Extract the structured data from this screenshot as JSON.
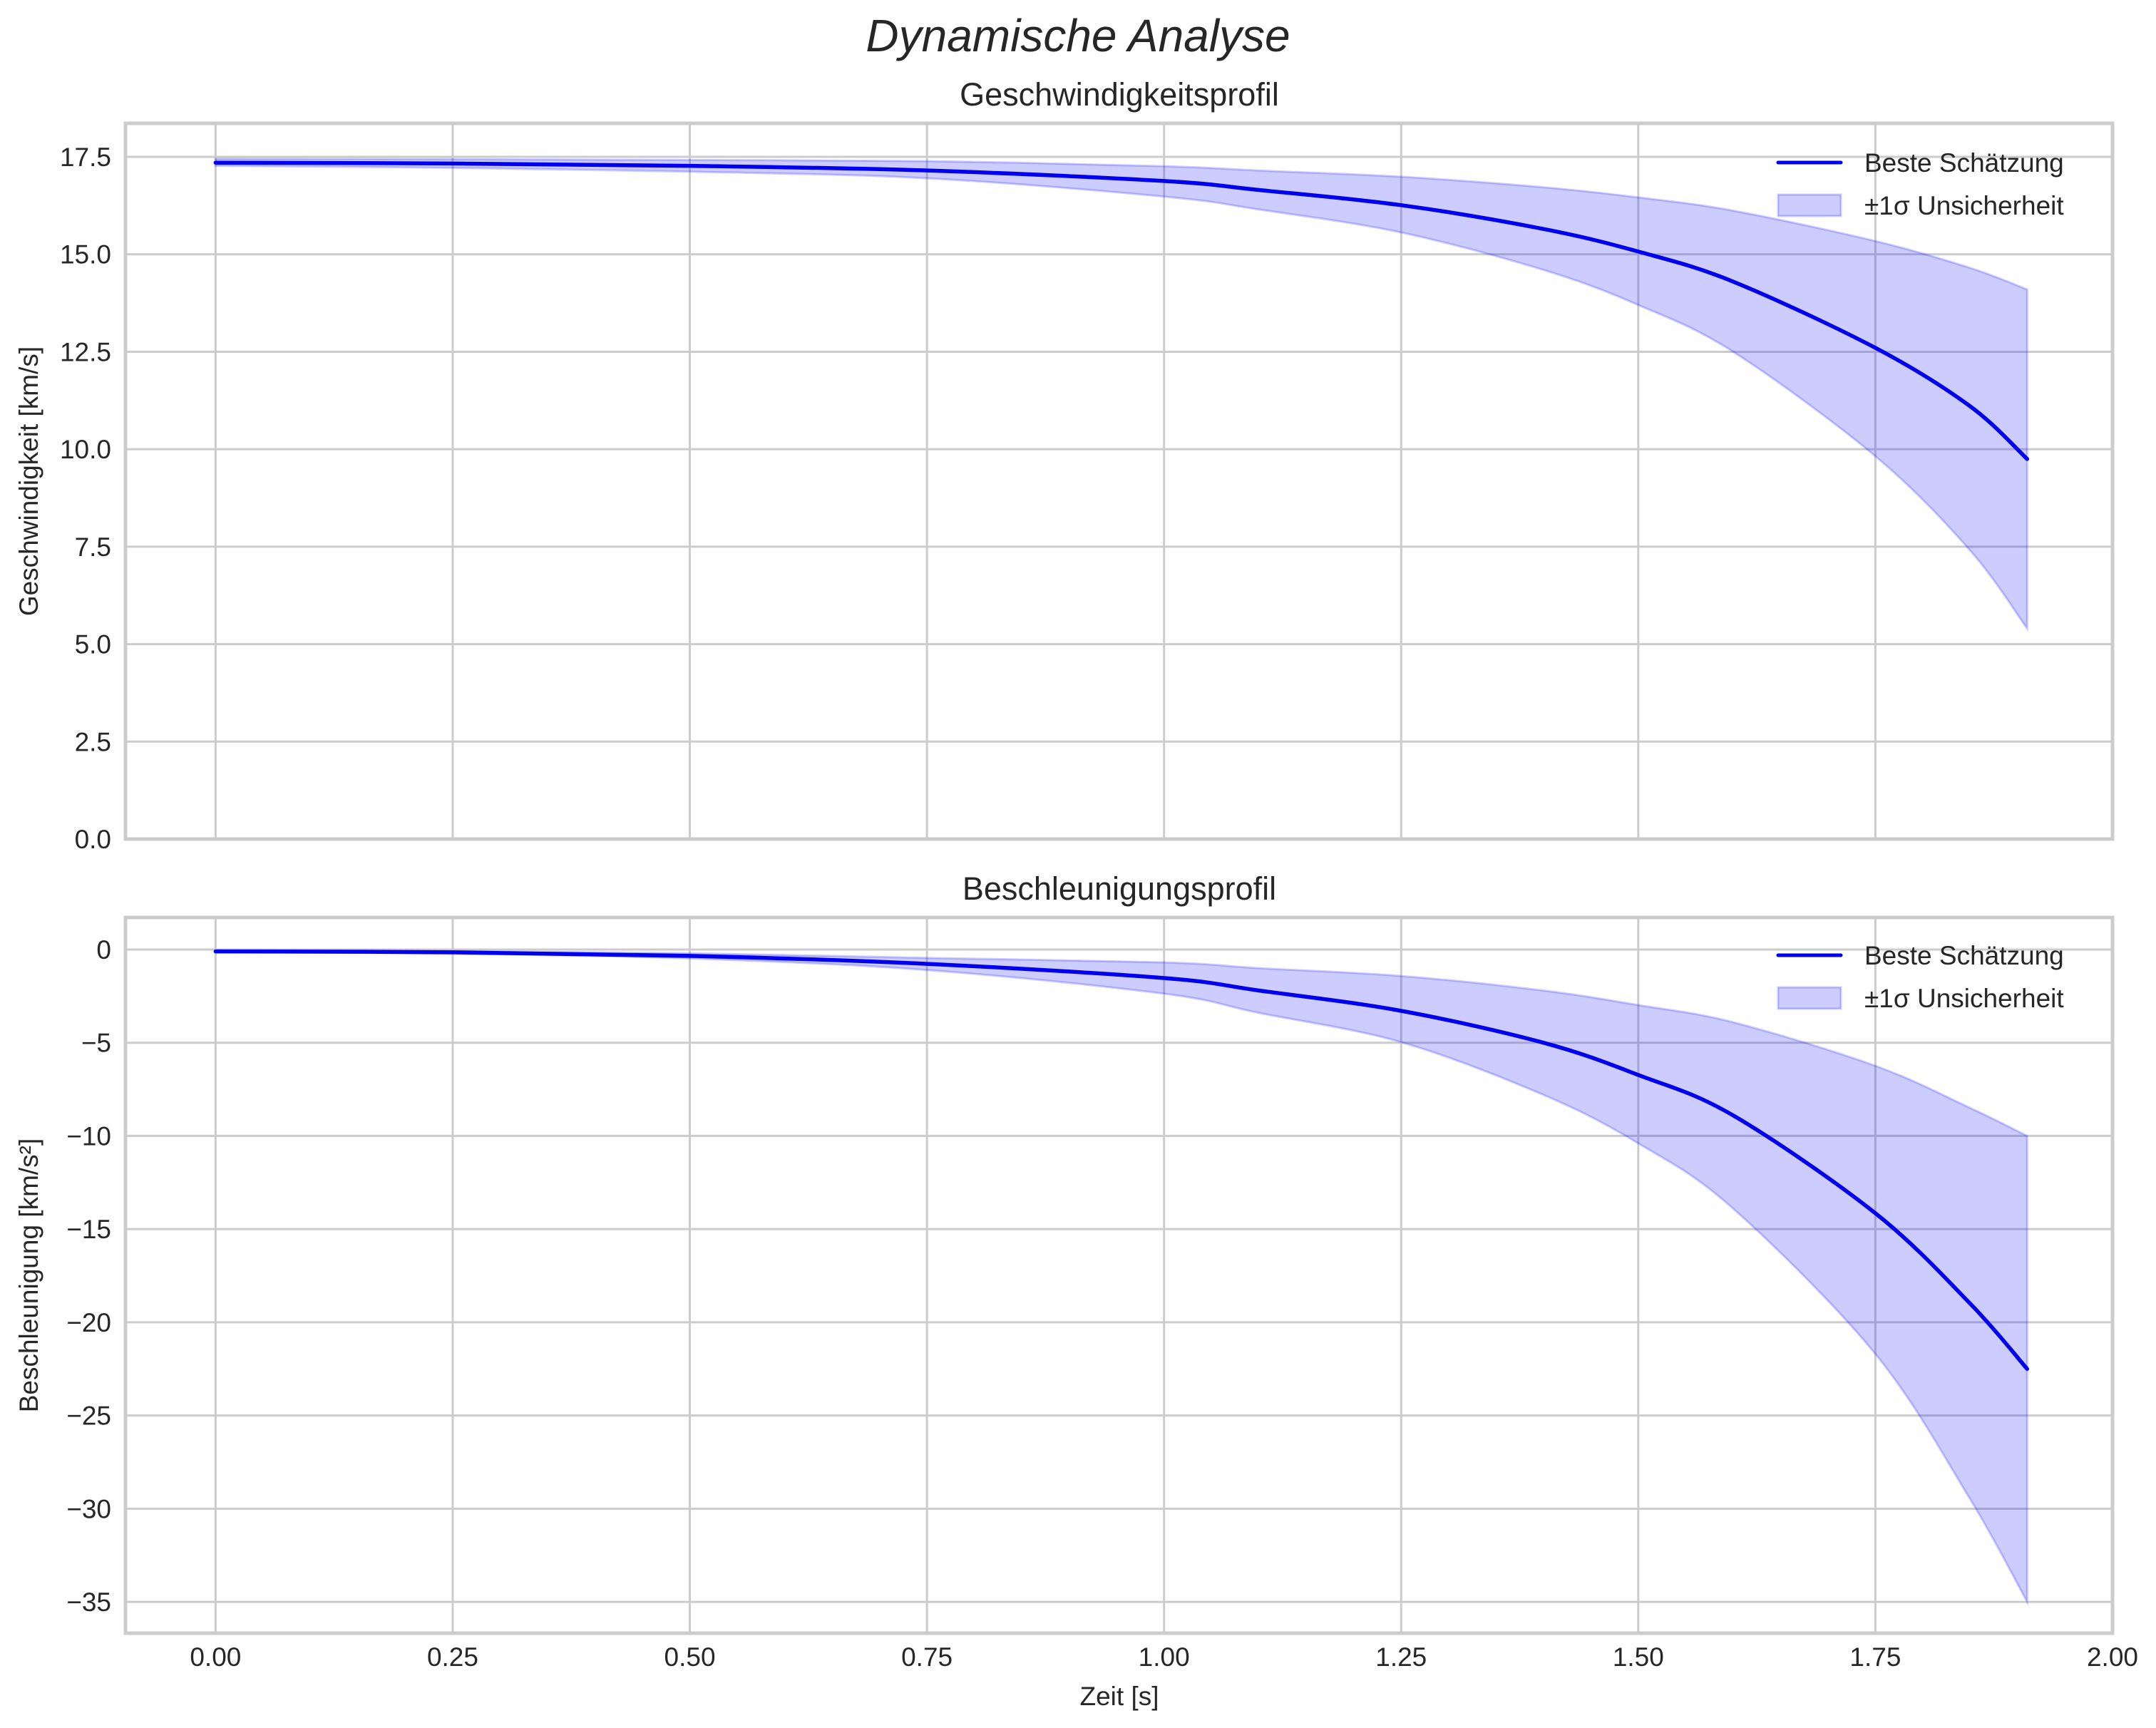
{
  "figure": {
    "title": "Dynamische Analyse"
  },
  "colors": {
    "line": "#0000ee",
    "band_fill": "#0000ff",
    "band_opacity": 0.2,
    "grid": "#cccccc",
    "text": "#262626"
  },
  "chart_data": [
    {
      "type": "line",
      "title": "Geschwindigkeitsprofil",
      "xlabel": "",
      "ylabel": "Geschwindigkeit [km/s]",
      "xlim": [
        -0.095,
        2.0
      ],
      "ylim": [
        0,
        18.36
      ],
      "xticks": [
        0.0,
        0.25,
        0.5,
        0.75,
        1.0,
        1.25,
        1.5,
        1.75,
        2.0
      ],
      "xtick_labels": [
        "0.00",
        "0.25",
        "0.50",
        "0.75",
        "1.00",
        "1.25",
        "1.50",
        "1.75",
        "2.00"
      ],
      "xtick_labels_visible": false,
      "yticks": [
        0.0,
        2.5,
        5.0,
        7.5,
        10.0,
        12.5,
        15.0,
        17.5
      ],
      "ytick_labels": [
        "0.0",
        "2.5",
        "5.0",
        "7.5",
        "10.0",
        "12.5",
        "15.0",
        "17.5"
      ],
      "grid": true,
      "legend_position": "upper right",
      "legend": [
        "Beste Schätzung",
        "±1σ Unsicherheit"
      ],
      "x": [
        0.0,
        0.25,
        0.5,
        0.75,
        1.0,
        1.1,
        1.25,
        1.4,
        1.5,
        1.6,
        1.75,
        1.85,
        1.91
      ],
      "series": [
        {
          "name": "Beste Schätzung",
          "kind": "line",
          "values": [
            17.35,
            17.33,
            17.27,
            17.15,
            16.88,
            16.65,
            16.26,
            15.65,
            15.07,
            14.3,
            12.6,
            11.1,
            9.75
          ]
        },
        {
          "name": "±1σ Unsicherheit (obere Grenze)",
          "kind": "band_upper",
          "values": [
            17.45,
            17.44,
            17.42,
            17.39,
            17.26,
            17.15,
            16.99,
            16.72,
            16.46,
            16.12,
            15.34,
            14.65,
            14.1
          ]
        },
        {
          "name": "±1σ Unsicherheit (untere Grenze)",
          "kind": "band_lower",
          "values": [
            17.27,
            17.22,
            17.12,
            16.95,
            16.48,
            16.15,
            15.56,
            14.6,
            13.7,
            12.5,
            9.82,
            7.4,
            5.4
          ]
        }
      ]
    },
    {
      "type": "line",
      "title": "Beschleunigungsprofil",
      "xlabel": "Zeit [s]",
      "ylabel": "Beschleunigung [km/s²]",
      "xlim": [
        -0.095,
        2.0
      ],
      "ylim": [
        -36.68,
        1.72
      ],
      "xticks": [
        0.0,
        0.25,
        0.5,
        0.75,
        1.0,
        1.25,
        1.5,
        1.75,
        2.0
      ],
      "xtick_labels": [
        "0.00",
        "0.25",
        "0.50",
        "0.75",
        "1.00",
        "1.25",
        "1.50",
        "1.75",
        "2.00"
      ],
      "xtick_labels_visible": true,
      "yticks": [
        0,
        -5,
        -10,
        -15,
        -20,
        -25,
        -30,
        -35
      ],
      "ytick_labels": [
        "0",
        "−5",
        "−10",
        "−15",
        "−20",
        "−25",
        "−30",
        "−35"
      ],
      "grid": true,
      "legend_position": "upper right",
      "legend": [
        "Beste Schätzung",
        "±1σ Unsicherheit"
      ],
      "x": [
        0.0,
        0.25,
        0.5,
        0.75,
        1.0,
        1.1,
        1.25,
        1.4,
        1.5,
        1.6,
        1.75,
        1.85,
        1.91
      ],
      "series": [
        {
          "name": "Beste Schätzung",
          "kind": "line",
          "values": [
            -0.1,
            -0.15,
            -0.34,
            -0.77,
            -1.53,
            -2.2,
            -3.29,
            -5.0,
            -6.73,
            -8.9,
            -14.15,
            -19.0,
            -22.5
          ]
        },
        {
          "name": "±1σ Unsicherheit (obere Grenze)",
          "kind": "band_upper",
          "values": [
            -0.05,
            -0.08,
            -0.2,
            -0.45,
            -0.69,
            -1.0,
            -1.42,
            -2.2,
            -2.98,
            -3.9,
            -6.24,
            -8.5,
            -10.0
          ]
        },
        {
          "name": "±1σ Unsicherheit (untere Grenze)",
          "kind": "band_lower",
          "values": [
            -0.15,
            -0.22,
            -0.48,
            -1.1,
            -2.37,
            -3.4,
            -4.97,
            -7.8,
            -10.4,
            -13.9,
            -21.7,
            -29.5,
            -35.0
          ]
        }
      ]
    }
  ]
}
